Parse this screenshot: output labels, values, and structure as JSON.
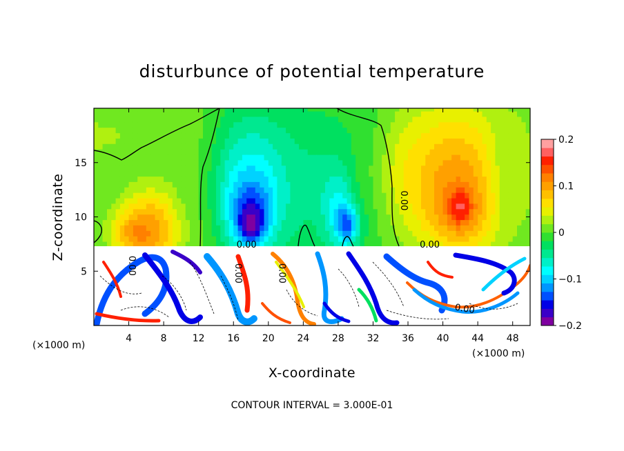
{
  "chart_data": {
    "type": "heatmap",
    "title": "disturbunce of potential temperature",
    "xlabel": "X-coordinate",
    "ylabel": "Z-coordinate",
    "x_unit_left": "(×1000 m)",
    "x_unit_right": "(×1000 m)",
    "footer": "CONTOUR INTERVAL = 3.000E-01",
    "xlim": [
      0,
      50
    ],
    "ylim": [
      0,
      20
    ],
    "xticks": [
      4,
      8,
      12,
      16,
      20,
      24,
      28,
      32,
      36,
      40,
      44,
      48
    ],
    "yticks": [
      5,
      10,
      15
    ],
    "colorbar": {
      "range": [
        -0.2,
        0.2
      ],
      "ticks": [
        0.2,
        0.1,
        0,
        -0.1,
        -0.2
      ],
      "tick_labels": [
        "0.2",
        "0.1",
        "0",
        "−0.1",
        "−0.2"
      ],
      "colors": [
        "#7f00a0",
        "#3a00c8",
        "#0000e6",
        "#0050ff",
        "#0096ff",
        "#00d2ff",
        "#00ffff",
        "#00f0c8",
        "#00e890",
        "#00e060",
        "#30e030",
        "#70e820",
        "#b0f010",
        "#e8f000",
        "#ffe000",
        "#ffc000",
        "#ffa000",
        "#ff8000",
        "#ff5000",
        "#ff2000",
        "#ff6060",
        "#ffa0a0"
      ]
    },
    "contour_labels": [
      {
        "text": "0.00",
        "x": 35.5,
        "y": 11.5,
        "rotate": 90
      },
      {
        "text": "0.00",
        "x": 17.5,
        "y": 7.4
      },
      {
        "text": "0.00",
        "x": 38.5,
        "y": 7.4
      },
      {
        "text": "0.00",
        "x": 4.3,
        "y": 5.5,
        "rotate": 90
      },
      {
        "text": "0.00",
        "x": 16.5,
        "y": 4.8,
        "rotate": 90
      },
      {
        "text": "0.00",
        "x": 21.5,
        "y": 4.8,
        "rotate": 90
      },
      {
        "text": "0.00",
        "x": 42.5,
        "y": 1.5,
        "rotate": 10
      }
    ],
    "blobs": [
      {
        "x": 0,
        "z": 17.5,
        "rx": 12,
        "rz": 4,
        "v": 0.02
      },
      {
        "x": 7,
        "z": 9.5,
        "rx": 4,
        "rz": 3.5,
        "v": 0.09
      },
      {
        "x": 5.5,
        "z": 8.5,
        "rx": 3,
        "rz": 2,
        "v": 0.12
      },
      {
        "x": 12.5,
        "z": 13,
        "rx": 3,
        "rz": 6,
        "v": 0.03
      },
      {
        "x": 23,
        "z": 13,
        "rx": 10,
        "rz": 7,
        "v": -0.04
      },
      {
        "x": 18,
        "z": 13,
        "rx": 4,
        "rz": 6,
        "v": -0.08
      },
      {
        "x": 18,
        "z": 10.5,
        "rx": 2.4,
        "rz": 3.2,
        "v": -0.15
      },
      {
        "x": 18,
        "z": 9.5,
        "rx": 1.2,
        "rz": 1.5,
        "v": -0.2
      },
      {
        "x": 28.5,
        "z": 11,
        "rx": 2.2,
        "rz": 4,
        "v": -0.1
      },
      {
        "x": 29,
        "z": 9.5,
        "rx": 1.1,
        "rz": 1.6,
        "v": -0.17
      },
      {
        "x": 31.5,
        "z": 15,
        "rx": 3,
        "rz": 5,
        "v": -0.02
      },
      {
        "x": 36,
        "z": 14,
        "rx": 3,
        "rz": 6,
        "v": 0.02
      },
      {
        "x": 41.5,
        "z": 14,
        "rx": 7,
        "rz": 7,
        "v": 0.09
      },
      {
        "x": 42,
        "z": 11,
        "rx": 3.5,
        "rz": 3.5,
        "v": 0.12
      },
      {
        "x": 42,
        "z": 11,
        "rx": 1.2,
        "rz": 1.4,
        "v": 0.17
      },
      {
        "x": 48.5,
        "z": 15,
        "rx": 3,
        "rz": 7,
        "v": 0.02
      }
    ]
  }
}
